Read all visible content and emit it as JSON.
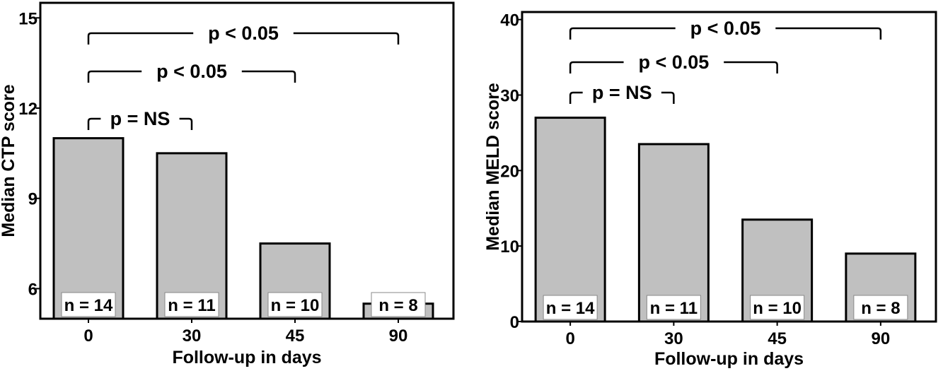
{
  "chart_data": [
    {
      "type": "bar",
      "categories": [
        "0",
        "30",
        "45",
        "90"
      ],
      "values": [
        11.0,
        10.5,
        7.5,
        5.5
      ],
      "n_labels": [
        "n = 14",
        "n = 11",
        "n = 10",
        "n = 8"
      ],
      "xlabel": "Follow-up in days",
      "ylabel": "Median CTP score",
      "ylim": [
        5,
        15.5
      ],
      "yticks": [
        6,
        9,
        12,
        15
      ],
      "grid": false,
      "annotations": [
        {
          "from": 0,
          "to": 1,
          "text": "p = NS"
        },
        {
          "from": 0,
          "to": 2,
          "text": "p < 0.05"
        },
        {
          "from": 0,
          "to": 3,
          "text": "p < 0.05"
        }
      ]
    },
    {
      "type": "bar",
      "categories": [
        "0",
        "30",
        "45",
        "90"
      ],
      "values": [
        27,
        23.5,
        13.5,
        9
      ],
      "n_labels": [
        "n = 14",
        "n = 11",
        "n = 10",
        "n = 8"
      ],
      "xlabel": "Follow-up in days",
      "ylabel": "Median MELD score",
      "ylim": [
        0,
        41
      ],
      "yticks": [
        0,
        10,
        20,
        30,
        40
      ],
      "grid": false,
      "annotations": [
        {
          "from": 0,
          "to": 1,
          "text": "p = NS"
        },
        {
          "from": 0,
          "to": 2,
          "text": "p < 0.05"
        },
        {
          "from": 0,
          "to": 3,
          "text": "p < 0.05"
        }
      ]
    }
  ]
}
